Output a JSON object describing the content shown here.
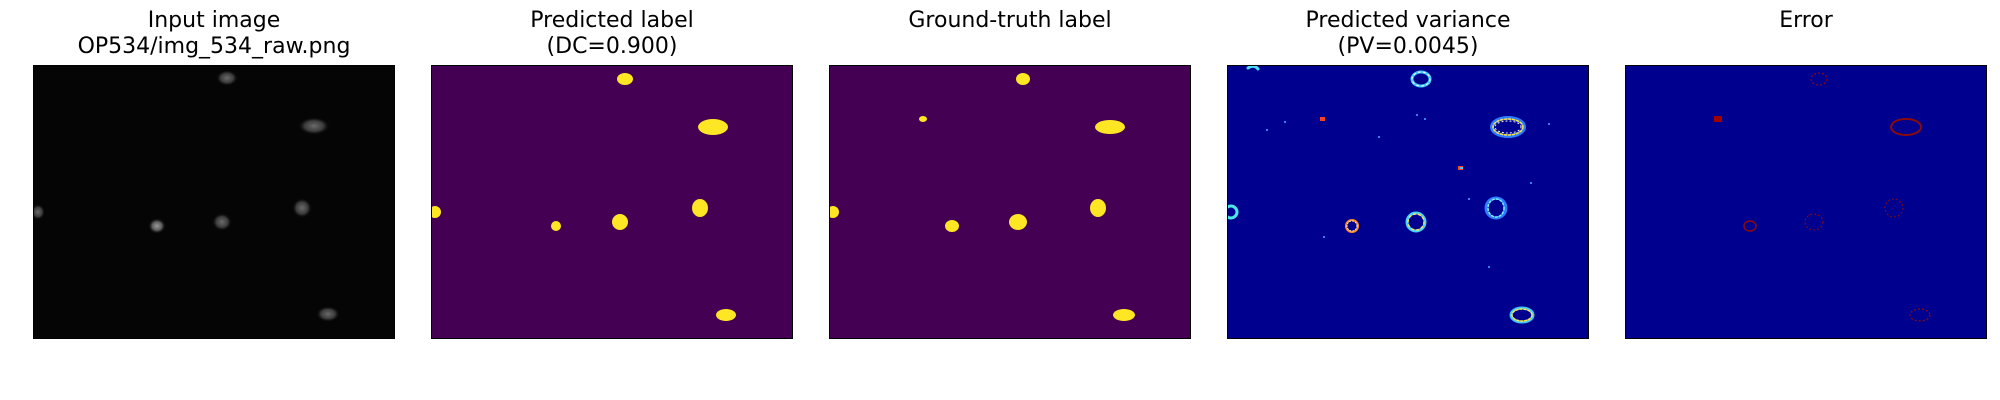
{
  "figure": {
    "panels": [
      {
        "id": "input",
        "title_line1": "Input image",
        "title_line2": "OP534/img_534_raw.png",
        "background": "#050505"
      },
      {
        "id": "predicted",
        "title_line1": "Predicted label",
        "title_line2": "(DC=0.900)",
        "background": "#440154",
        "foreground": "#fde725"
      },
      {
        "id": "ground_truth",
        "title_line1": "",
        "title_line2": "Ground-truth label",
        "background": "#440154",
        "foreground": "#fde725"
      },
      {
        "id": "variance",
        "title_line1": "Predicted variance",
        "title_line2": "(PV=0.0045)",
        "background": "#00008f"
      },
      {
        "id": "error",
        "title_line1": "",
        "title_line2": "Error",
        "background": "#00008f",
        "foreground": "#8b0a0a"
      }
    ]
  }
}
